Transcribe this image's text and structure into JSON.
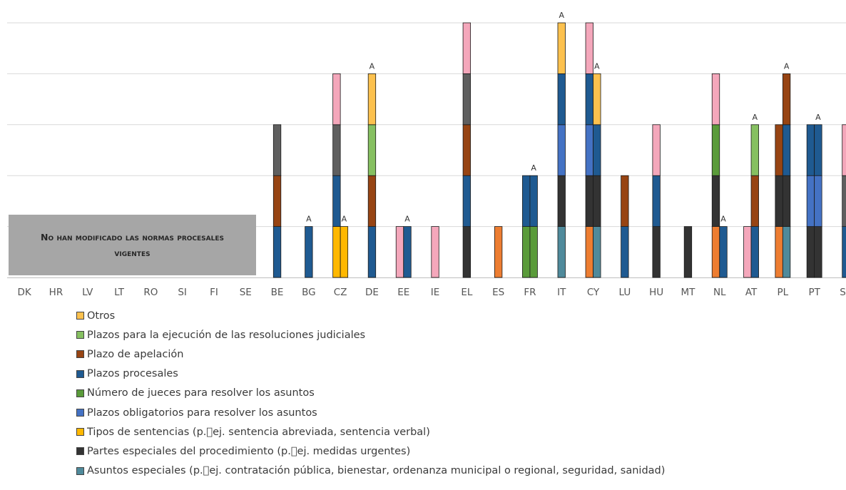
{
  "note": "No han modificado las normas procesales vigentes",
  "legend": [
    {
      "label": "Otros",
      "color": "#fcc14e"
    },
    {
      "label": "Plazos para la ejecución de las resoluciones judiciales",
      "color": "#86c061"
    },
    {
      "label": "Plazo de apelación",
      "color": "#974413"
    },
    {
      "label": "Plazos procesales",
      "color": "#1f5a91"
    },
    {
      "label": "Número de jueces para resolver los asuntos",
      "color": "#5a9b3a"
    },
    {
      "label": "Plazos obligatorios para resolver los asuntos",
      "color": "#4472c4"
    },
    {
      "label": "Tipos de sentencias (p.\u0000ej. sentencia abreviada, sentencia verbal)",
      "color": "#ffb800"
    },
    {
      "label": "Partes especiales del procedimiento (p.\u0000ej. medidas urgentes)",
      "color": "#333333"
    },
    {
      "label": "Asuntos especiales (p.\u0000ej. contratación pública, bienestar, ordenanza municipal o regional, seguridad, sanidad)",
      "color": "#4f8a9b"
    }
  ],
  "chart_data": {
    "type": "bar",
    "stacked": true,
    "ylim": [
      0,
      5
    ],
    "grid": true,
    "marker_label": "A",
    "categories": [
      "DK",
      "HR",
      "LV",
      "LT",
      "RO",
      "SI",
      "FI",
      "SE",
      "BE",
      "BG",
      "CZ",
      "DE",
      "EE",
      "IE",
      "EL",
      "ES",
      "FR",
      "IT",
      "CY",
      "LU",
      "HU",
      "MT",
      "NL",
      "AT",
      "PL",
      "PT",
      "SK"
    ],
    "bars": [
      {
        "category": "BE",
        "segments": [
          "#1f5a91",
          "#974413",
          "#5f5f5f"
        ],
        "marked": false
      },
      {
        "category": "BG",
        "segments": [
          "#1f5a91"
        ],
        "marked": true
      },
      {
        "category": "CZ",
        "segments": [
          "#ffb800",
          "#1f5a91",
          "#5f5f5f",
          "#f4a7bb"
        ],
        "marked": false
      },
      {
        "category": "CZ",
        "segments": [
          "#ffb800"
        ],
        "marked": true
      },
      {
        "category": "DE",
        "segments": [
          "#1f5a91",
          "#974413",
          "#86c061",
          "#fcc14e"
        ],
        "marked": true
      },
      {
        "category": "EE",
        "segments": [
          "#f4a7bb"
        ],
        "marked": false
      },
      {
        "category": "EE",
        "segments": [
          "#1f5a91"
        ],
        "marked": true
      },
      {
        "category": "IE",
        "segments": [
          "#f4a7bb"
        ],
        "marked": false
      },
      {
        "category": "EL",
        "segments": [
          "#333333",
          "#1f5a91",
          "#974413",
          "#5f5f5f",
          "#f4a7bb"
        ],
        "marked": false
      },
      {
        "category": "ES",
        "segments": [
          "#ed7d31"
        ],
        "marked": false
      },
      {
        "category": "FR",
        "segments": [
          "#5a9b3a",
          "#1f5a91"
        ],
        "marked": false
      },
      {
        "category": "FR",
        "segments": [
          "#5a9b3a",
          "#1f5a91"
        ],
        "marked": true
      },
      {
        "category": "IT",
        "segments": [
          "#4f8a9b",
          "#333333",
          "#4472c4",
          "#1f5a91",
          "#fcc14e"
        ],
        "marked": true
      },
      {
        "category": "CY",
        "segments": [
          "#ed7d31",
          "#333333",
          "#4472c4",
          "#1f5a91",
          "#f4a7bb"
        ],
        "marked": false
      },
      {
        "category": "CY",
        "segments": [
          "#4f8a9b",
          "#333333",
          "#1f5a91",
          "#fcc14e"
        ],
        "marked": true
      },
      {
        "category": "LU",
        "segments": [
          "#1f5a91",
          "#974413"
        ],
        "marked": false
      },
      {
        "category": "HU",
        "segments": [
          "#333333",
          "#1f5a91",
          "#f4a7bb"
        ],
        "marked": false
      },
      {
        "category": "MT",
        "segments": [
          "#333333"
        ],
        "marked": false
      },
      {
        "category": "NL",
        "segments": [
          "#ed7d31",
          "#333333",
          "#5a9b3a",
          "#f4a7bb"
        ],
        "marked": false
      },
      {
        "category": "NL",
        "segments": [
          "#1f5a91"
        ],
        "marked": true
      },
      {
        "category": "AT",
        "segments": [
          "#f4a7bb"
        ],
        "marked": false
      },
      {
        "category": "AT",
        "segments": [
          "#1f5a91",
          "#974413",
          "#86c061"
        ],
        "marked": true
      },
      {
        "category": "PL",
        "segments": [
          "#ed7d31",
          "#333333",
          "#974413"
        ],
        "marked": false
      },
      {
        "category": "PL",
        "segments": [
          "#4f8a9b",
          "#333333",
          "#1f5a91",
          "#974413"
        ],
        "marked": true
      },
      {
        "category": "PT",
        "segments": [
          "#333333",
          "#4472c4",
          "#1f5a91"
        ],
        "marked": false
      },
      {
        "category": "PT",
        "segments": [
          "#333333",
          "#4472c4",
          "#1f5a91"
        ],
        "marked": true
      },
      {
        "category": "SK",
        "segments": [
          "#1f5a91",
          "#5f5f5f",
          "#f4a7bb"
        ],
        "marked": false
      }
    ]
  }
}
